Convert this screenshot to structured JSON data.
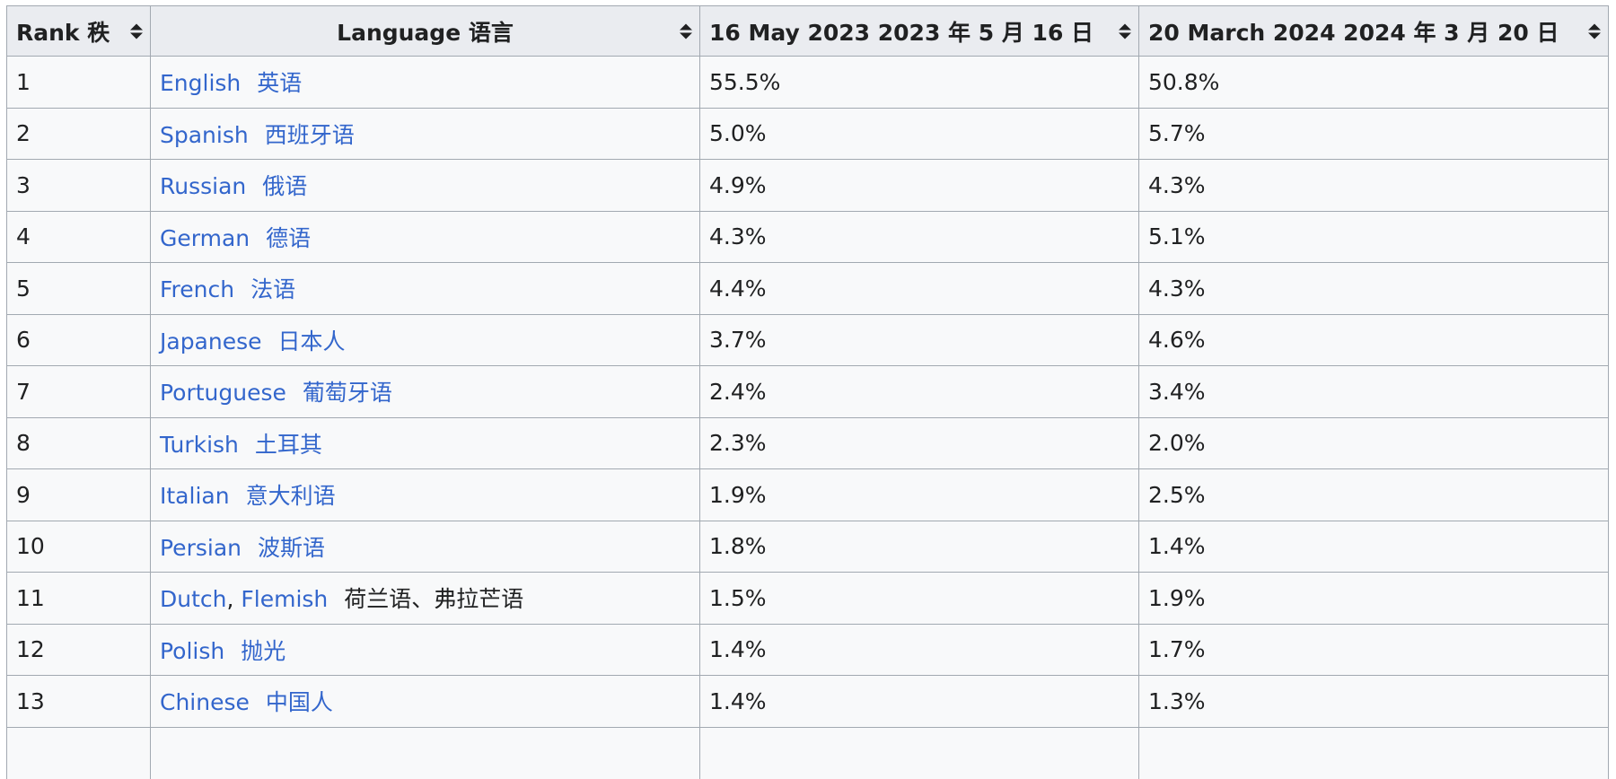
{
  "headers": {
    "rank": "Rank 秩",
    "language": "Language 语言",
    "may2023": "16 May 2023  2023 年 5 月 16 日",
    "mar2024": "20 March 2024  2024 年 3 月 20 日"
  },
  "colors": {
    "link": "#3366cc",
    "header_bg": "#eaecf0",
    "cell_bg": "#f8f9fa",
    "border": "#a2a9b1"
  },
  "rows": [
    {
      "rank": "1",
      "links": [
        "English"
      ],
      "zh": "英语",
      "may2023": "55.5%",
      "mar2024": "50.8%"
    },
    {
      "rank": "2",
      "links": [
        "Spanish"
      ],
      "zh": "西班牙语",
      "may2023": "5.0%",
      "mar2024": "5.7%"
    },
    {
      "rank": "3",
      "links": [
        "Russian"
      ],
      "zh": "俄语",
      "may2023": "4.9%",
      "mar2024": "4.3%"
    },
    {
      "rank": "4",
      "links": [
        "German"
      ],
      "zh": "德语",
      "may2023": "4.3%",
      "mar2024": "5.1%"
    },
    {
      "rank": "5",
      "links": [
        "French"
      ],
      "zh": "法语",
      "may2023": "4.4%",
      "mar2024": "4.3%"
    },
    {
      "rank": "6",
      "links": [
        "Japanese"
      ],
      "zh": "日本人",
      "may2023": "3.7%",
      "mar2024": "4.6%"
    },
    {
      "rank": "7",
      "links": [
        "Portuguese"
      ],
      "zh": "葡萄牙语",
      "may2023": "2.4%",
      "mar2024": "3.4%"
    },
    {
      "rank": "8",
      "links": [
        "Turkish"
      ],
      "zh": "土耳其",
      "may2023": "2.3%",
      "mar2024": "2.0%"
    },
    {
      "rank": "9",
      "links": [
        "Italian"
      ],
      "zh": "意大利语",
      "may2023": "1.9%",
      "mar2024": "2.5%"
    },
    {
      "rank": "10",
      "links": [
        "Persian"
      ],
      "zh": "波斯语",
      "may2023": "1.8%",
      "mar2024": "1.4%"
    },
    {
      "rank": "11",
      "links": [
        "Dutch",
        "Flemish"
      ],
      "zh": "荷兰语、弗拉芒语",
      "may2023": "1.5%",
      "mar2024": "1.9%"
    },
    {
      "rank": "12",
      "links": [
        "Polish"
      ],
      "zh": "抛光",
      "may2023": "1.4%",
      "mar2024": "1.7%"
    },
    {
      "rank": "13",
      "links": [
        "Chinese"
      ],
      "zh": "中国人",
      "may2023": "1.4%",
      "mar2024": "1.3%"
    }
  ]
}
